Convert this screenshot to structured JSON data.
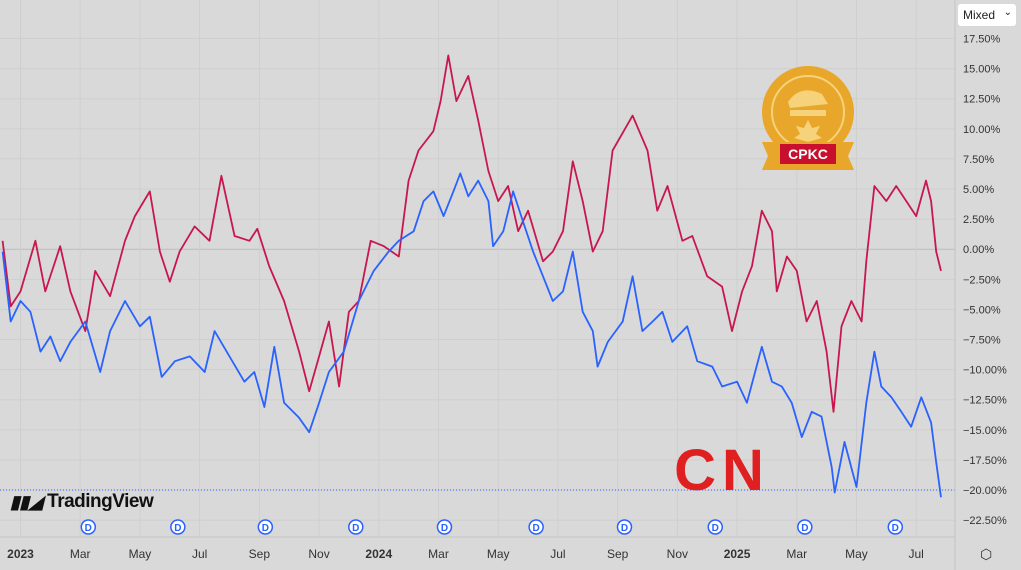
{
  "scale_mode": {
    "label": "Mixed"
  },
  "brand": {
    "name": "TradingView"
  },
  "logos": {
    "cpkc": "CPKC",
    "cn": "CN"
  },
  "dividend_marker": "D",
  "colors": {
    "background": "#d9d9d9",
    "cpkc": "#c8174e",
    "cn": "#2962ff",
    "grid": "#cfcfcf"
  },
  "chart_data": {
    "type": "line",
    "title": "",
    "xlabel": "",
    "ylabel": "",
    "x_ticks": [
      {
        "m": 0,
        "label": "2023",
        "bold": true
      },
      {
        "m": 2,
        "label": "Mar"
      },
      {
        "m": 4,
        "label": "May"
      },
      {
        "m": 6,
        "label": "Jul"
      },
      {
        "m": 8,
        "label": "Sep"
      },
      {
        "m": 10,
        "label": "Nov"
      },
      {
        "m": 12,
        "label": "2024",
        "bold": true
      },
      {
        "m": 14,
        "label": "Mar"
      },
      {
        "m": 16,
        "label": "May"
      },
      {
        "m": 18,
        "label": "Jul"
      },
      {
        "m": 20,
        "label": "Sep"
      },
      {
        "m": 22,
        "label": "Nov"
      },
      {
        "m": 24,
        "label": "2025",
        "bold": true
      },
      {
        "m": 26,
        "label": "Mar"
      },
      {
        "m": 28,
        "label": "May"
      },
      {
        "m": 30,
        "label": "Jul"
      }
    ],
    "y_ticks": [
      {
        "v": 17.5,
        "label": "17.50%"
      },
      {
        "v": 15,
        "label": "15.00%"
      },
      {
        "v": 12.5,
        "label": "12.50%"
      },
      {
        "v": 10,
        "label": "10.00%"
      },
      {
        "v": 7.5,
        "label": "7.50%"
      },
      {
        "v": 5,
        "label": "5.00%"
      },
      {
        "v": 2.5,
        "label": "2.50%"
      },
      {
        "v": 0,
        "label": "0.00%"
      },
      {
        "v": -2.5,
        "label": "−2.50%"
      },
      {
        "v": -5,
        "label": "−5.00%"
      },
      {
        "v": -7.5,
        "label": "−7.50%"
      },
      {
        "v": -10,
        "label": "−10.00%"
      },
      {
        "v": -12.5,
        "label": "−12.50%"
      },
      {
        "v": -15,
        "label": "−15.00%"
      },
      {
        "v": -17.5,
        "label": "−17.50%"
      },
      {
        "v": -20,
        "label": "−20.00%"
      },
      {
        "v": -22.5,
        "label": "−22.50%"
      }
    ],
    "xlim": [
      -0.62,
      31.3
    ],
    "ylim": [
      -23.9,
      20.7
    ],
    "dividend_months": [
      2.27,
      5.27,
      8.2,
      11.23,
      14.2,
      17.27,
      20.23,
      23.27,
      26.27,
      29.3
    ],
    "series": [
      {
        "name": "CPKC",
        "color": "#c8174e",
        "points": [
          [
            -0.6,
            0.7
          ],
          [
            -0.33,
            -4.75
          ],
          [
            0,
            -3.5
          ],
          [
            0.5,
            0.7
          ],
          [
            0.83,
            -3.5
          ],
          [
            1.33,
            0.25
          ],
          [
            1.67,
            -3.5
          ],
          [
            2.17,
            -6.8
          ],
          [
            2.5,
            -1.8
          ],
          [
            3,
            -3.9
          ],
          [
            3.5,
            0.7
          ],
          [
            3.83,
            2.75
          ],
          [
            4.33,
            4.8
          ],
          [
            4.67,
            -0.2
          ],
          [
            5,
            -2.7
          ],
          [
            5.33,
            -0.2
          ],
          [
            5.83,
            1.9
          ],
          [
            6.33,
            0.7
          ],
          [
            6.73,
            6.1
          ],
          [
            7.17,
            1.1
          ],
          [
            7.67,
            0.7
          ],
          [
            7.93,
            1.7
          ],
          [
            8.33,
            -1.4
          ],
          [
            8.83,
            -4.3
          ],
          [
            9.33,
            -8.5
          ],
          [
            9.67,
            -11.8
          ],
          [
            10,
            -8.9
          ],
          [
            10.33,
            -6
          ],
          [
            10.67,
            -11.4
          ],
          [
            11,
            -5.2
          ],
          [
            11.33,
            -4.3
          ],
          [
            11.73,
            0.7
          ],
          [
            12.17,
            0.25
          ],
          [
            12.67,
            -0.6
          ],
          [
            13,
            5.7
          ],
          [
            13.33,
            8.2
          ],
          [
            13.83,
            9.8
          ],
          [
            14.07,
            12.3
          ],
          [
            14.33,
            16.1
          ],
          [
            14.6,
            12.3
          ],
          [
            15,
            14.4
          ],
          [
            15.33,
            10.7
          ],
          [
            15.67,
            6.5
          ],
          [
            16,
            4
          ],
          [
            16.33,
            5.25
          ],
          [
            16.67,
            1.5
          ],
          [
            17,
            3.2
          ],
          [
            17.5,
            -1
          ],
          [
            17.83,
            -0.2
          ],
          [
            18.17,
            1.5
          ],
          [
            18.5,
            7.3
          ],
          [
            18.83,
            4
          ],
          [
            19.17,
            -0.2
          ],
          [
            19.5,
            1.5
          ],
          [
            19.83,
            8.2
          ],
          [
            20.5,
            11.1
          ],
          [
            21,
            8.2
          ],
          [
            21.33,
            3.2
          ],
          [
            21.67,
            5.25
          ],
          [
            22.17,
            0.7
          ],
          [
            22.5,
            1.1
          ],
          [
            23,
            -2.25
          ],
          [
            23.5,
            -3.1
          ],
          [
            23.83,
            -6.8
          ],
          [
            24.17,
            -3.5
          ],
          [
            24.5,
            -1.4
          ],
          [
            24.83,
            3.2
          ],
          [
            25.17,
            1.5
          ],
          [
            25.33,
            -3.5
          ],
          [
            25.67,
            -0.6
          ],
          [
            26,
            -1.8
          ],
          [
            26.33,
            -6
          ],
          [
            26.67,
            -4.3
          ],
          [
            27,
            -8.5
          ],
          [
            27.23,
            -13.5
          ],
          [
            27.5,
            -6.4
          ],
          [
            27.83,
            -4.3
          ],
          [
            28.17,
            -6
          ],
          [
            28.33,
            -1
          ],
          [
            28.6,
            5.25
          ],
          [
            29,
            4
          ],
          [
            29.33,
            5.25
          ],
          [
            29.67,
            4
          ],
          [
            30,
            2.75
          ],
          [
            30.33,
            5.7
          ],
          [
            30.5,
            4
          ],
          [
            30.67,
            -0.2
          ],
          [
            30.83,
            -1.8
          ]
        ]
      },
      {
        "name": "CN",
        "color": "#2962ff",
        "points": [
          [
            -0.6,
            -0.2
          ],
          [
            -0.33,
            -6
          ],
          [
            0,
            -4.3
          ],
          [
            0.33,
            -5.2
          ],
          [
            0.67,
            -8.5
          ],
          [
            1,
            -7.25
          ],
          [
            1.33,
            -9.3
          ],
          [
            1.67,
            -7.7
          ],
          [
            2.17,
            -6
          ],
          [
            2.67,
            -10.2
          ],
          [
            3,
            -6.8
          ],
          [
            3.5,
            -4.3
          ],
          [
            4,
            -6.4
          ],
          [
            4.33,
            -5.6
          ],
          [
            4.73,
            -10.6
          ],
          [
            5.17,
            -9.3
          ],
          [
            5.67,
            -8.9
          ],
          [
            6.17,
            -10.2
          ],
          [
            6.5,
            -6.8
          ],
          [
            7,
            -8.9
          ],
          [
            7.5,
            -11
          ],
          [
            7.83,
            -10.2
          ],
          [
            8.17,
            -13.1
          ],
          [
            8.5,
            -8.1
          ],
          [
            8.83,
            -12.75
          ],
          [
            9.33,
            -14
          ],
          [
            9.67,
            -15.2
          ],
          [
            10,
            -12.75
          ],
          [
            10.33,
            -10.2
          ],
          [
            10.83,
            -8.5
          ],
          [
            11.33,
            -4.3
          ],
          [
            11.83,
            -1.8
          ],
          [
            12.33,
            -0.2
          ],
          [
            12.67,
            0.7
          ],
          [
            13.17,
            1.5
          ],
          [
            13.5,
            4
          ],
          [
            13.83,
            4.8
          ],
          [
            14.17,
            2.75
          ],
          [
            14.5,
            4.8
          ],
          [
            14.73,
            6.3
          ],
          [
            15,
            4.4
          ],
          [
            15.33,
            5.7
          ],
          [
            15.67,
            4
          ],
          [
            15.83,
            0.25
          ],
          [
            16.17,
            1.5
          ],
          [
            16.5,
            4.8
          ],
          [
            16.83,
            2.3
          ],
          [
            17.17,
            -0.2
          ],
          [
            17.5,
            -2.25
          ],
          [
            17.83,
            -4.3
          ],
          [
            18.17,
            -3.5
          ],
          [
            18.5,
            -0.2
          ],
          [
            18.83,
            -5.2
          ],
          [
            19.17,
            -6.8
          ],
          [
            19.33,
            -9.75
          ],
          [
            19.67,
            -7.7
          ],
          [
            20.17,
            -6
          ],
          [
            20.5,
            -2.25
          ],
          [
            20.83,
            -6.8
          ],
          [
            21.17,
            -6
          ],
          [
            21.5,
            -5.2
          ],
          [
            21.83,
            -7.7
          ],
          [
            22.33,
            -6.4
          ],
          [
            22.67,
            -9.3
          ],
          [
            23.17,
            -9.75
          ],
          [
            23.5,
            -11.4
          ],
          [
            24,
            -11
          ],
          [
            24.33,
            -12.75
          ],
          [
            24.83,
            -8.1
          ],
          [
            25.17,
            -11
          ],
          [
            25.5,
            -11.4
          ],
          [
            25.83,
            -12.75
          ],
          [
            26.17,
            -15.6
          ],
          [
            26.5,
            -13.5
          ],
          [
            26.83,
            -13.9
          ],
          [
            27.17,
            -18.1
          ],
          [
            27.27,
            -20.2
          ],
          [
            27.6,
            -16
          ],
          [
            28,
            -19.75
          ],
          [
            28.33,
            -12.75
          ],
          [
            28.6,
            -8.5
          ],
          [
            28.83,
            -11.4
          ],
          [
            29.17,
            -12.3
          ],
          [
            29.5,
            -13.5
          ],
          [
            29.83,
            -14.75
          ],
          [
            30.17,
            -12.3
          ],
          [
            30.5,
            -14.4
          ],
          [
            30.67,
            -17.7
          ],
          [
            30.83,
            -20.6
          ]
        ]
      }
    ],
    "last_value_line": -20.0,
    "zero_line": 0,
    "grid": true,
    "legend": "none"
  }
}
